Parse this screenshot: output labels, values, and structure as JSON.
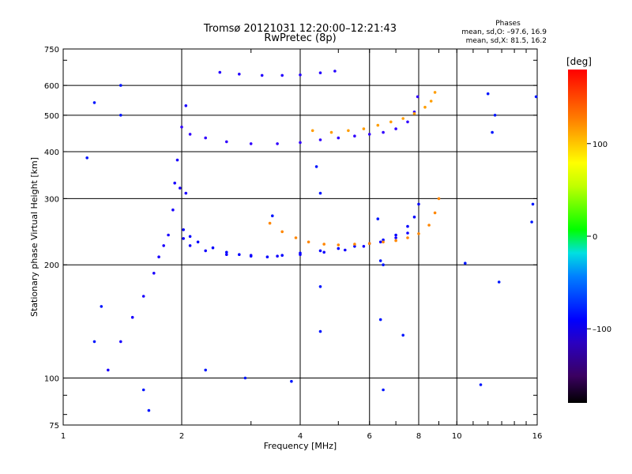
{
  "title": "Tromsø 20121031 12:20:00–12:21:43",
  "subtitle": "RwPretec (8p)",
  "stats": {
    "heading": "Phases",
    "line_o": "mean, sd,O: –97.6, 16.9",
    "line_x": "mean, sd,X:  81.5, 16.2"
  },
  "colorbar": {
    "unit_label": "[deg]",
    "ticks": [
      "100",
      "0",
      "–100"
    ]
  },
  "chart_data": {
    "type": "scatter",
    "title": "Tromsø 20121031 12:20:00–12:21:43",
    "subtitle": "RwPretec (8p)",
    "xlabel": "Frequency [MHz]",
    "ylabel": "Stationary phase Virtual Height [km]",
    "x_scale": "log",
    "y_scale": "log",
    "xlim": [
      1,
      16
    ],
    "ylim": [
      75,
      750
    ],
    "x_ticks": [
      1,
      2,
      4,
      6,
      8,
      10,
      16
    ],
    "x_tick_labels": [
      "1",
      "2",
      "4",
      "6",
      "8",
      "10",
      "16"
    ],
    "y_ticks": [
      75,
      100,
      200,
      300,
      400,
      500,
      600,
      750
    ],
    "y_tick_labels": [
      "75",
      "100",
      "200",
      "300",
      "400",
      "500",
      "600",
      "750"
    ],
    "grid": true,
    "color_scale": {
      "label": "[deg]",
      "min": -180,
      "max": 180,
      "ticks": [
        100,
        0,
        -100
      ]
    },
    "series": [
      {
        "mode": "O",
        "phase": -105,
        "points": [
          [
            2.02,
            248
          ],
          [
            2.1,
            238
          ],
          [
            2.2,
            230
          ],
          [
            2.4,
            222
          ],
          [
            2.6,
            216
          ],
          [
            2.8,
            213
          ],
          [
            3.0,
            211
          ],
          [
            3.3,
            210
          ],
          [
            3.6,
            212
          ],
          [
            4.0,
            215
          ],
          [
            4.5,
            218
          ],
          [
            5.0,
            221
          ],
          [
            5.5,
            224
          ],
          [
            6.0,
            228
          ],
          [
            6.5,
            233
          ],
          [
            7.0,
            240
          ],
          [
            7.5,
            253
          ],
          [
            7.8,
            268
          ],
          [
            8.0,
            290
          ]
        ]
      },
      {
        "mode": "O",
        "phase": -108,
        "points": [
          [
            2.02,
            235
          ],
          [
            2.1,
            225
          ],
          [
            2.3,
            218
          ],
          [
            2.6,
            213
          ],
          [
            3.0,
            212
          ],
          [
            3.5,
            211
          ],
          [
            4.0,
            213
          ],
          [
            4.6,
            216
          ],
          [
            5.2,
            219
          ],
          [
            5.8,
            224
          ],
          [
            6.4,
            230
          ],
          [
            7.0,
            236
          ],
          [
            7.5,
            243
          ]
        ]
      },
      {
        "mode": "X",
        "phase": 85,
        "points": [
          [
            3.35,
            258
          ],
          [
            3.6,
            245
          ],
          [
            3.9,
            236
          ],
          [
            4.2,
            230
          ],
          [
            4.6,
            227
          ],
          [
            5.0,
            226
          ],
          [
            5.5,
            227
          ],
          [
            6.0,
            228
          ],
          [
            6.5,
            230
          ],
          [
            7.0,
            232
          ],
          [
            7.5,
            236
          ],
          [
            8.0,
            242
          ],
          [
            8.5,
            255
          ],
          [
            8.8,
            275
          ],
          [
            9.0,
            300
          ]
        ]
      },
      {
        "mode": "O",
        "phase": -115,
        "points": [
          [
            2.0,
            465
          ],
          [
            2.1,
            445
          ],
          [
            2.3,
            435
          ],
          [
            2.6,
            425
          ],
          [
            3.0,
            420
          ],
          [
            3.5,
            420
          ],
          [
            4.0,
            423
          ],
          [
            4.5,
            430
          ],
          [
            5.0,
            435
          ],
          [
            5.5,
            440
          ],
          [
            6.0,
            445
          ],
          [
            6.5,
            450
          ],
          [
            7.0,
            460
          ],
          [
            7.5,
            480
          ],
          [
            7.8,
            510
          ],
          [
            7.95,
            560
          ]
        ]
      },
      {
        "mode": "X",
        "phase": 80,
        "points": [
          [
            4.3,
            455
          ],
          [
            4.8,
            450
          ],
          [
            5.3,
            455
          ],
          [
            5.8,
            460
          ],
          [
            6.3,
            470
          ],
          [
            6.8,
            480
          ],
          [
            7.3,
            490
          ],
          [
            7.8,
            505
          ],
          [
            8.3,
            525
          ],
          [
            8.6,
            545
          ],
          [
            8.8,
            575
          ]
        ]
      },
      {
        "mode": "O",
        "phase": -112,
        "points": [
          [
            2.5,
            650
          ],
          [
            2.8,
            643
          ],
          [
            3.2,
            638
          ],
          [
            3.6,
            638
          ],
          [
            4.0,
            640
          ],
          [
            4.5,
            648
          ],
          [
            4.9,
            655
          ]
        ]
      },
      {
        "mode": "O",
        "phase": -110,
        "points": [
          [
            1.3,
            105
          ],
          [
            1.4,
            125
          ],
          [
            1.5,
            145
          ],
          [
            1.6,
            165
          ],
          [
            1.7,
            190
          ],
          [
            1.75,
            210
          ],
          [
            1.8,
            225
          ],
          [
            1.85,
            240
          ],
          [
            1.9,
            280
          ],
          [
            1.92,
            330
          ],
          [
            1.95,
            380
          ],
          [
            1.98,
            320
          ],
          [
            2.05,
            310
          ],
          [
            2.05,
            530
          ]
        ]
      },
      {
        "mode": "noise",
        "phase": -100,
        "points": [
          [
            1.2,
            540
          ],
          [
            1.4,
            600
          ],
          [
            1.4,
            500
          ],
          [
            1.15,
            385
          ],
          [
            1.2,
            125
          ],
          [
            1.25,
            155
          ],
          [
            1.6,
            93
          ],
          [
            1.65,
            82
          ],
          [
            2.3,
            105
          ],
          [
            2.9,
            100
          ],
          [
            3.4,
            270
          ],
          [
            3.8,
            98
          ],
          [
            4.4,
            365
          ],
          [
            4.5,
            310
          ],
          [
            4.5,
            175
          ],
          [
            4.5,
            133
          ],
          [
            6.3,
            265
          ],
          [
            6.4,
            205
          ],
          [
            6.5,
            200
          ],
          [
            6.5,
            93
          ],
          [
            6.4,
            143
          ],
          [
            7.3,
            130
          ],
          [
            10.5,
            202
          ],
          [
            11.5,
            96
          ],
          [
            12.0,
            570
          ],
          [
            12.3,
            450
          ],
          [
            12.5,
            500
          ],
          [
            12.8,
            180
          ],
          [
            15.5,
            260
          ],
          [
            15.6,
            290
          ],
          [
            15.9,
            560
          ]
        ]
      }
    ]
  }
}
